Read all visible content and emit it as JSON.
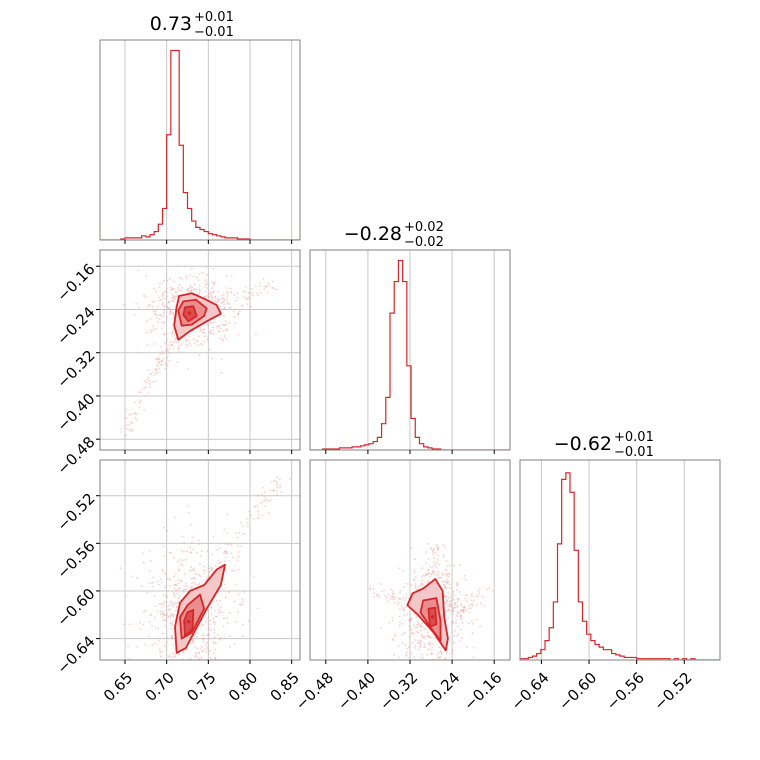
{
  "colors": {
    "accent": "#d62728",
    "fill_light": "#f4c7c8",
    "fill_mid": "#ea8d8f",
    "fill_dark": "#dc4d50",
    "grid": "#c8c8c8",
    "frame": "#808080",
    "scatter": "#f0a5a6"
  },
  "chart_data": [
    {
      "type": "histogram",
      "panel": "diag-0",
      "title_main": "0.73",
      "title_sup": "+0.01",
      "title_sub": "−0.01",
      "xlim": [
        0.62,
        0.86
      ],
      "xticks": [
        0.65,
        0.7,
        0.75,
        0.8,
        0.85
      ],
      "xticklabels": [
        "0.65",
        "0.70",
        "0.75",
        "0.80",
        "0.85"
      ],
      "bin_edges_start": 0.62,
      "bin_width": 0.005,
      "counts": [
        0,
        0,
        0,
        0,
        0,
        1,
        2,
        2,
        2,
        2,
        4,
        3,
        5,
        8,
        15,
        30,
        100,
        180,
        180,
        90,
        45,
        30,
        18,
        12,
        10,
        8,
        6,
        5,
        4,
        3,
        2,
        2,
        2,
        1,
        1,
        1,
        0,
        0,
        0,
        0,
        0,
        0,
        0,
        0,
        0,
        0,
        0,
        0
      ],
      "ylim": [
        0,
        190
      ]
    },
    {
      "type": "scatter-contour",
      "panel": "r1c0",
      "x_param": 0,
      "y_param": 1,
      "xlim": [
        0.62,
        0.86
      ],
      "ylim": [
        -0.5,
        -0.13
      ],
      "xticks": [
        0.65,
        0.7,
        0.75,
        0.8,
        0.85
      ],
      "yticks": [
        -0.16,
        -0.24,
        -0.32,
        -0.4,
        -0.48
      ],
      "yticklabels": [
        "−0.16",
        "−0.24",
        "−0.32",
        "−0.40",
        "−0.48"
      ],
      "levels": [
        [
          [
            0.715,
            -0.215
          ],
          [
            0.73,
            -0.21
          ],
          [
            0.745,
            -0.22
          ],
          [
            0.76,
            -0.232
          ],
          [
            0.765,
            -0.248
          ],
          [
            0.748,
            -0.262
          ],
          [
            0.728,
            -0.28
          ],
          [
            0.714,
            -0.296
          ],
          [
            0.709,
            -0.27
          ],
          [
            0.712,
            -0.235
          ]
        ],
        [
          [
            0.72,
            -0.225
          ],
          [
            0.735,
            -0.222
          ],
          [
            0.748,
            -0.238
          ],
          [
            0.745,
            -0.252
          ],
          [
            0.73,
            -0.268
          ],
          [
            0.718,
            -0.27
          ],
          [
            0.714,
            -0.242
          ]
        ],
        [
          [
            0.722,
            -0.236
          ],
          [
            0.732,
            -0.234
          ],
          [
            0.736,
            -0.252
          ],
          [
            0.726,
            -0.262
          ],
          [
            0.72,
            -0.25
          ]
        ]
      ],
      "scatter_spread": [
        [
          0.65,
          -0.47
        ],
        [
          0.68,
          -0.37
        ],
        [
          0.7,
          -0.32
        ],
        [
          0.73,
          -0.25
        ],
        [
          0.78,
          -0.22
        ],
        [
          0.83,
          -0.2
        ]
      ]
    },
    {
      "type": "histogram",
      "panel": "diag-1",
      "title_main": "−0.28",
      "title_sup": "+0.02",
      "title_sub": "−0.02",
      "xlim": [
        -0.51,
        -0.13
      ],
      "xticks": [
        -0.48,
        -0.4,
        -0.32,
        -0.24,
        -0.16
      ],
      "xticklabels": [
        "−0.48",
        "−0.40",
        "−0.32",
        "−0.24",
        "−0.16"
      ],
      "bin_edges_start": -0.51,
      "bin_width": 0.008,
      "counts": [
        0,
        0,
        0,
        1,
        1,
        1,
        1,
        2,
        2,
        2,
        3,
        3,
        4,
        5,
        6,
        8,
        12,
        25,
        50,
        130,
        160,
        180,
        160,
        80,
        30,
        12,
        6,
        3,
        2,
        1,
        1,
        0,
        0,
        0,
        0,
        0,
        0,
        0,
        0,
        0,
        0,
        0,
        0,
        0,
        0,
        0,
        0,
        0
      ],
      "ylim": [
        0,
        190
      ]
    },
    {
      "type": "scatter-contour",
      "panel": "r2c0",
      "x_param": 0,
      "y_param": 2,
      "xlim": [
        0.62,
        0.86
      ],
      "ylim": [
        -0.658,
        -0.49
      ],
      "xticks": [
        0.65,
        0.7,
        0.75,
        0.8,
        0.85
      ],
      "xticklabels": [
        "0.65",
        "0.70",
        "0.75",
        "0.80",
        "0.85"
      ],
      "yticks": [
        -0.52,
        -0.56,
        -0.6,
        -0.64
      ],
      "yticklabels": [
        "−0.52",
        "−0.56",
        "−0.60",
        "−0.64"
      ],
      "levels": [
        [
          [
            0.728,
            -0.6
          ],
          [
            0.745,
            -0.595
          ],
          [
            0.76,
            -0.582
          ],
          [
            0.77,
            -0.578
          ],
          [
            0.765,
            -0.595
          ],
          [
            0.748,
            -0.615
          ],
          [
            0.735,
            -0.632
          ],
          [
            0.723,
            -0.648
          ],
          [
            0.712,
            -0.652
          ],
          [
            0.71,
            -0.63
          ],
          [
            0.716,
            -0.61
          ]
        ],
        [
          [
            0.725,
            -0.612
          ],
          [
            0.74,
            -0.603
          ],
          [
            0.745,
            -0.615
          ],
          [
            0.73,
            -0.635
          ],
          [
            0.718,
            -0.64
          ],
          [
            0.716,
            -0.622
          ]
        ],
        [
          [
            0.725,
            -0.618
          ],
          [
            0.732,
            -0.616
          ],
          [
            0.731,
            -0.632
          ],
          [
            0.722,
            -0.638
          ],
          [
            0.721,
            -0.625
          ]
        ]
      ],
      "scatter_spread": [
        [
          0.69,
          -0.62
        ],
        [
          0.73,
          -0.62
        ],
        [
          0.76,
          -0.58
        ],
        [
          0.8,
          -0.54
        ],
        [
          0.84,
          -0.505
        ]
      ]
    },
    {
      "type": "scatter-contour",
      "panel": "r2c1",
      "x_param": 1,
      "y_param": 2,
      "xlim": [
        -0.51,
        -0.13
      ],
      "ylim": [
        -0.658,
        -0.49
      ],
      "xticks": [
        -0.48,
        -0.4,
        -0.32,
        -0.24,
        -0.16
      ],
      "xticklabels": [
        "−0.48",
        "−0.40",
        "−0.32",
        "−0.24",
        "−0.16"
      ],
      "levels": [
        [
          [
            -0.295,
            -0.598
          ],
          [
            -0.272,
            -0.59
          ],
          [
            -0.258,
            -0.6
          ],
          [
            -0.255,
            -0.622
          ],
          [
            -0.248,
            -0.64
          ],
          [
            -0.252,
            -0.65
          ],
          [
            -0.275,
            -0.635
          ],
          [
            -0.305,
            -0.62
          ],
          [
            -0.325,
            -0.612
          ],
          [
            -0.315,
            -0.602
          ]
        ],
        [
          [
            -0.295,
            -0.608
          ],
          [
            -0.27,
            -0.606
          ],
          [
            -0.262,
            -0.625
          ],
          [
            -0.262,
            -0.642
          ],
          [
            -0.282,
            -0.63
          ],
          [
            -0.3,
            -0.618
          ]
        ],
        [
          [
            -0.285,
            -0.615
          ],
          [
            -0.272,
            -0.614
          ],
          [
            -0.27,
            -0.628
          ],
          [
            -0.282,
            -0.63
          ]
        ]
      ],
      "scatter_spread": [
        [
          -0.4,
          -0.6
        ],
        [
          -0.32,
          -0.61
        ],
        [
          -0.28,
          -0.6
        ],
        [
          -0.27,
          -0.56
        ],
        [
          -0.23,
          -0.62
        ],
        [
          -0.18,
          -0.6
        ]
      ]
    },
    {
      "type": "histogram",
      "panel": "diag-2",
      "title_main": "−0.62",
      "title_sup": "+0.01",
      "title_sub": "−0.01",
      "xlim": [
        -0.658,
        -0.49
      ],
      "xticks": [
        -0.64,
        -0.6,
        -0.56,
        -0.52
      ],
      "xticklabels": [
        "−0.64",
        "−0.60",
        "−0.56",
        "−0.52"
      ],
      "bin_edges_start": -0.658,
      "bin_width": 0.0035,
      "counts": [
        1,
        1,
        2,
        3,
        5,
        8,
        15,
        25,
        45,
        90,
        140,
        145,
        130,
        85,
        45,
        30,
        20,
        15,
        12,
        10,
        8,
        8,
        5,
        4,
        3,
        2,
        2,
        2,
        1,
        1,
        1,
        1,
        1,
        1,
        1,
        1,
        0,
        1,
        0,
        1,
        0,
        1,
        0,
        0,
        0,
        0,
        0,
        0
      ],
      "ylim": [
        0,
        155
      ]
    }
  ]
}
